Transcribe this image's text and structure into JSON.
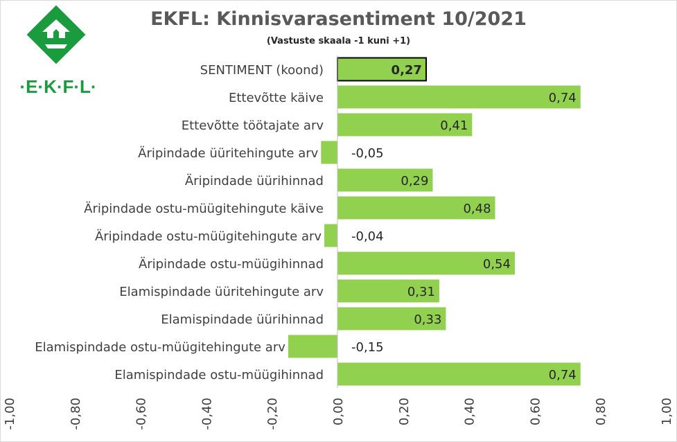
{
  "chart_data": {
    "type": "bar",
    "orientation": "horizontal",
    "title": "EKFL: Kinnisvarasentiment 10/2021",
    "subtitle": "(Vastuste skaala -1 kuni +1)",
    "categories": [
      "SENTIMENT (koond)",
      "Ettevõtte käive",
      "Ettevõtte töötajate arv",
      "Äripindade üüritehingute arv",
      "Äripindade üürihinnad",
      "Äripindade ostu-müügitehingute käive",
      "Äripindade ostu-müügitehingute arv",
      "Äripindade ostu-müügihinnad",
      "Elamispindade üüritehingute arv",
      "Elamispindade üürihinnad",
      "Elamispindade ostu-müügitehingute arv",
      "Elamispindade ostu-müügihinnad"
    ],
    "values": [
      0.27,
      0.74,
      0.41,
      -0.05,
      0.29,
      0.48,
      -0.04,
      0.54,
      0.31,
      0.33,
      -0.15,
      0.74
    ],
    "value_labels": [
      "0,27",
      "0,74",
      "0,41",
      "-0,05",
      "0,29",
      "0,48",
      "-0,04",
      "0,54",
      "0,31",
      "0,33",
      "-0,15",
      "0,74"
    ],
    "xlim": [
      -1,
      1
    ],
    "ticks": [
      -1,
      -0.8,
      -0.6,
      -0.4,
      -0.2,
      0,
      0.2,
      0.4,
      0.6,
      0.8,
      1
    ],
    "tick_labels": [
      "-1,00",
      "-0,80",
      "-0,60",
      "-0,40",
      "-0,20",
      "0,00",
      "0,20",
      "0,40",
      "0,60",
      "0,80",
      "1,00"
    ],
    "highlight_index": 0,
    "bar_color": "#92d050",
    "highlight_border": "#000000",
    "grid": false,
    "legend": "none"
  },
  "logo": {
    "text": "·E·K·F·L·",
    "color": "#1a9c3e"
  }
}
